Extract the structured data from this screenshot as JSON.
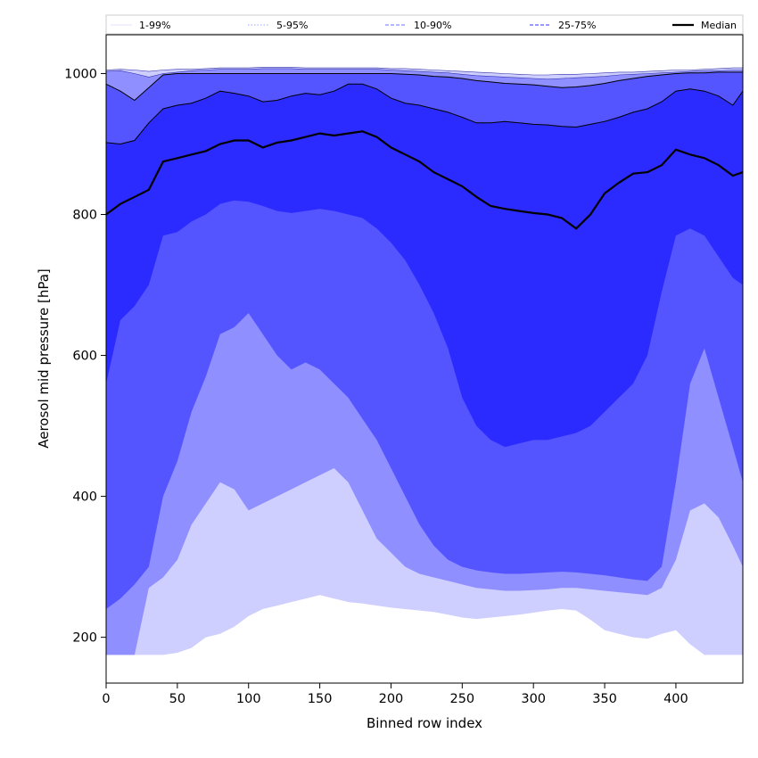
{
  "chart_data": {
    "type": "area",
    "title": "",
    "xlabel": "Binned row index",
    "ylabel": "Aerosol mid pressure [hPa]",
    "xlim": [
      0,
      447
    ],
    "ylim": [
      135,
      1055
    ],
    "xticks": [
      0,
      50,
      100,
      150,
      200,
      250,
      300,
      350,
      400
    ],
    "yticks": [
      200,
      400,
      600,
      800,
      1000
    ],
    "grid": false,
    "legend": {
      "placement": "top, above plot",
      "entries": [
        {
          "label": "1-99%",
          "color": "#e6e6ff",
          "style": "solid"
        },
        {
          "label": "5-95%",
          "color": "#b4b4ff",
          "style": "dotted"
        },
        {
          "label": "10-90%",
          "color": "#8c8cff",
          "style": "dashed"
        },
        {
          "label": "25-75%",
          "color": "#5a5aff",
          "style": "dashed"
        },
        {
          "label": "Median",
          "color": "#000000",
          "style": "solid"
        }
      ]
    },
    "x": [
      0,
      10,
      20,
      30,
      40,
      50,
      60,
      70,
      80,
      90,
      100,
      110,
      120,
      130,
      140,
      150,
      160,
      170,
      180,
      190,
      200,
      210,
      220,
      230,
      240,
      250,
      260,
      270,
      280,
      290,
      300,
      310,
      320,
      330,
      340,
      350,
      360,
      370,
      380,
      390,
      400,
      410,
      420,
      430,
      440,
      447
    ],
    "series": [
      {
        "name": "1-99%",
        "color": "#ceceff",
        "low": [
          175,
          175,
          175,
          175,
          175,
          178,
          185,
          200,
          205,
          215,
          230,
          240,
          245,
          250,
          255,
          260,
          255,
          250,
          248,
          245,
          242,
          240,
          238,
          236,
          232,
          228,
          226,
          228,
          230,
          232,
          235,
          238,
          240,
          238,
          225,
          210,
          205,
          200,
          198,
          205,
          210,
          190,
          175,
          175,
          175,
          175
        ],
        "high": [
          1005,
          1006,
          1005,
          1003,
          1005,
          1006,
          1006,
          1007,
          1008,
          1008,
          1008,
          1009,
          1009,
          1009,
          1008,
          1008,
          1008,
          1008,
          1008,
          1008,
          1007,
          1007,
          1006,
          1005,
          1004,
          1003,
          1002,
          1001,
          1000,
          999,
          998,
          998,
          999,
          999,
          1000,
          1001,
          1002,
          1002,
          1003,
          1004,
          1005,
          1005,
          1006,
          1007,
          1008,
          1008
        ]
      },
      {
        "name": "5-95%",
        "color": "#8f8fff",
        "low": [
          175,
          175,
          175,
          270,
          285,
          310,
          360,
          390,
          420,
          410,
          380,
          390,
          400,
          410,
          420,
          430,
          440,
          420,
          380,
          340,
          320,
          300,
          290,
          285,
          280,
          275,
          270,
          268,
          266,
          266,
          267,
          268,
          270,
          270,
          268,
          266,
          264,
          262,
          260,
          270,
          310,
          380,
          390,
          370,
          330,
          300
        ],
        "high": [
          1003,
          1004,
          1000,
          995,
          1000,
          1002,
          1004,
          1005,
          1006,
          1006,
          1006,
          1007,
          1007,
          1007,
          1006,
          1006,
          1006,
          1006,
          1006,
          1006,
          1005,
          1004,
          1003,
          1002,
          1001,
          999,
          997,
          996,
          995,
          994,
          993,
          992,
          993,
          994,
          995,
          996,
          998,
          999,
          1000,
          1001,
          1002,
          1003,
          1004,
          1004,
          1005,
          1005
        ]
      },
      {
        "name": "10-90%",
        "color": "#5555ff",
        "low": [
          240,
          255,
          275,
          300,
          400,
          450,
          520,
          570,
          630,
          640,
          660,
          630,
          600,
          580,
          590,
          580,
          560,
          540,
          510,
          480,
          440,
          400,
          360,
          330,
          310,
          300,
          295,
          292,
          290,
          290,
          291,
          292,
          293,
          292,
          290,
          288,
          285,
          282,
          280,
          300,
          420,
          560,
          610,
          540,
          470,
          420
        ],
        "high": [
          985,
          975,
          962,
          980,
          998,
          1000,
          1000,
          1000,
          1000,
          1000,
          1000,
          1000,
          1000,
          1000,
          1000,
          1000,
          1000,
          1000,
          1000,
          1000,
          1000,
          999,
          998,
          996,
          995,
          993,
          990,
          988,
          986,
          985,
          984,
          982,
          980,
          981,
          983,
          986,
          990,
          993,
          996,
          998,
          1000,
          1001,
          1001,
          1002,
          1002,
          1002
        ]
      },
      {
        "name": "25-75%",
        "color": "#2b2bff",
        "low": [
          560,
          650,
          670,
          700,
          770,
          775,
          790,
          800,
          815,
          820,
          818,
          812,
          805,
          802,
          805,
          808,
          805,
          800,
          795,
          780,
          760,
          735,
          700,
          660,
          610,
          540,
          500,
          480,
          470,
          475,
          480,
          480,
          485,
          490,
          500,
          520,
          540,
          560,
          600,
          690,
          770,
          780,
          770,
          740,
          710,
          700
        ],
        "high": [
          902,
          900,
          905,
          930,
          950,
          955,
          958,
          965,
          975,
          972,
          968,
          960,
          962,
          968,
          972,
          970,
          975,
          985,
          985,
          978,
          965,
          958,
          955,
          950,
          945,
          938,
          930,
          930,
          932,
          930,
          928,
          927,
          925,
          924,
          928,
          932,
          938,
          945,
          950,
          960,
          975,
          978,
          975,
          968,
          955,
          975
        ]
      }
    ],
    "median": {
      "name": "Median",
      "color": "#000000",
      "values": [
        800,
        815,
        825,
        835,
        875,
        880,
        885,
        890,
        900,
        905,
        905,
        895,
        902,
        905,
        910,
        915,
        912,
        915,
        918,
        910,
        895,
        885,
        875,
        860,
        850,
        840,
        825,
        812,
        808,
        805,
        802,
        800,
        795,
        780,
        800,
        830,
        845,
        858,
        860,
        870,
        892,
        885,
        880,
        870,
        855,
        860
      ]
    }
  }
}
